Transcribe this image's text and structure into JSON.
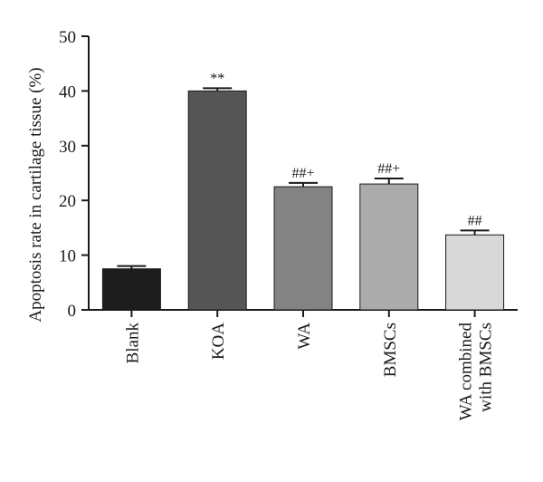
{
  "chart_data": {
    "type": "bar",
    "ylabel": "Apoptosis rate in cartilage tissue (%)",
    "ylim": [
      0,
      50
    ],
    "yticks": [
      "0",
      "10",
      "20",
      "30",
      "40",
      "50"
    ],
    "categories": [
      [
        "Blank"
      ],
      [
        "KOA"
      ],
      [
        "WA"
      ],
      [
        "BMSCs"
      ],
      [
        "WA combined",
        "with BMSCs"
      ]
    ],
    "values": [
      7.5,
      40.0,
      22.5,
      23.0,
      13.7
    ],
    "errors": [
      0.5,
      0.5,
      0.7,
      1.0,
      0.8
    ],
    "annotations": [
      "",
      "**",
      "##+",
      "##+",
      "##"
    ],
    "colors": [
      "#1c1c1c",
      "#555555",
      "#838383",
      "#ababab",
      "#d8d8d8"
    ],
    "grid": false
  }
}
